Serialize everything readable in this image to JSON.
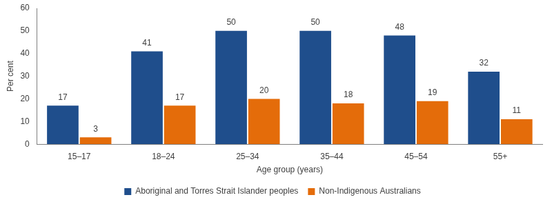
{
  "chart_data": {
    "type": "bar",
    "categories": [
      "15–17",
      "18–24",
      "25–34",
      "35–44",
      "45–54",
      "55+"
    ],
    "series": [
      {
        "name": "Aboriginal and Torres Strait Islander peoples",
        "color": "#1f4e8c",
        "values": [
          17,
          41,
          50,
          50,
          48,
          32
        ]
      },
      {
        "name": "Non-Indigenous Australians",
        "color": "#e46c0a",
        "values": [
          3,
          17,
          20,
          18,
          19,
          11
        ]
      }
    ],
    "x_label": "Age group (years)",
    "y_label": "Per cent",
    "ylim": [
      0,
      60
    ],
    "yticks": [
      0,
      10,
      20,
      30,
      40,
      50,
      60
    ],
    "grid": false,
    "legend": "bottom",
    "data_labels": true
  }
}
